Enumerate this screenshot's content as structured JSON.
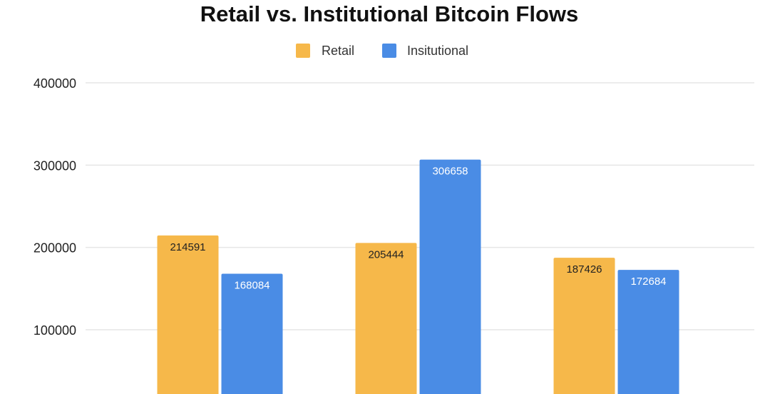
{
  "chart_data": {
    "type": "bar",
    "title": "Retail vs. Institutional Bitcoin Flows",
    "categories": [
      "",
      "",
      ""
    ],
    "series": [
      {
        "name": "Retail",
        "color": "#F6B84A",
        "label_color": "#222222",
        "values": [
          214591,
          205444,
          187426
        ]
      },
      {
        "name": "Insitutional",
        "color": "#4A8CE5",
        "label_color": "#ffffff",
        "values": [
          168084,
          306658,
          172684
        ]
      }
    ],
    "yticks": [
      100000,
      200000,
      300000,
      400000
    ],
    "ylim": [
      0,
      400000
    ],
    "grid": true,
    "legend_position": "top-center"
  }
}
